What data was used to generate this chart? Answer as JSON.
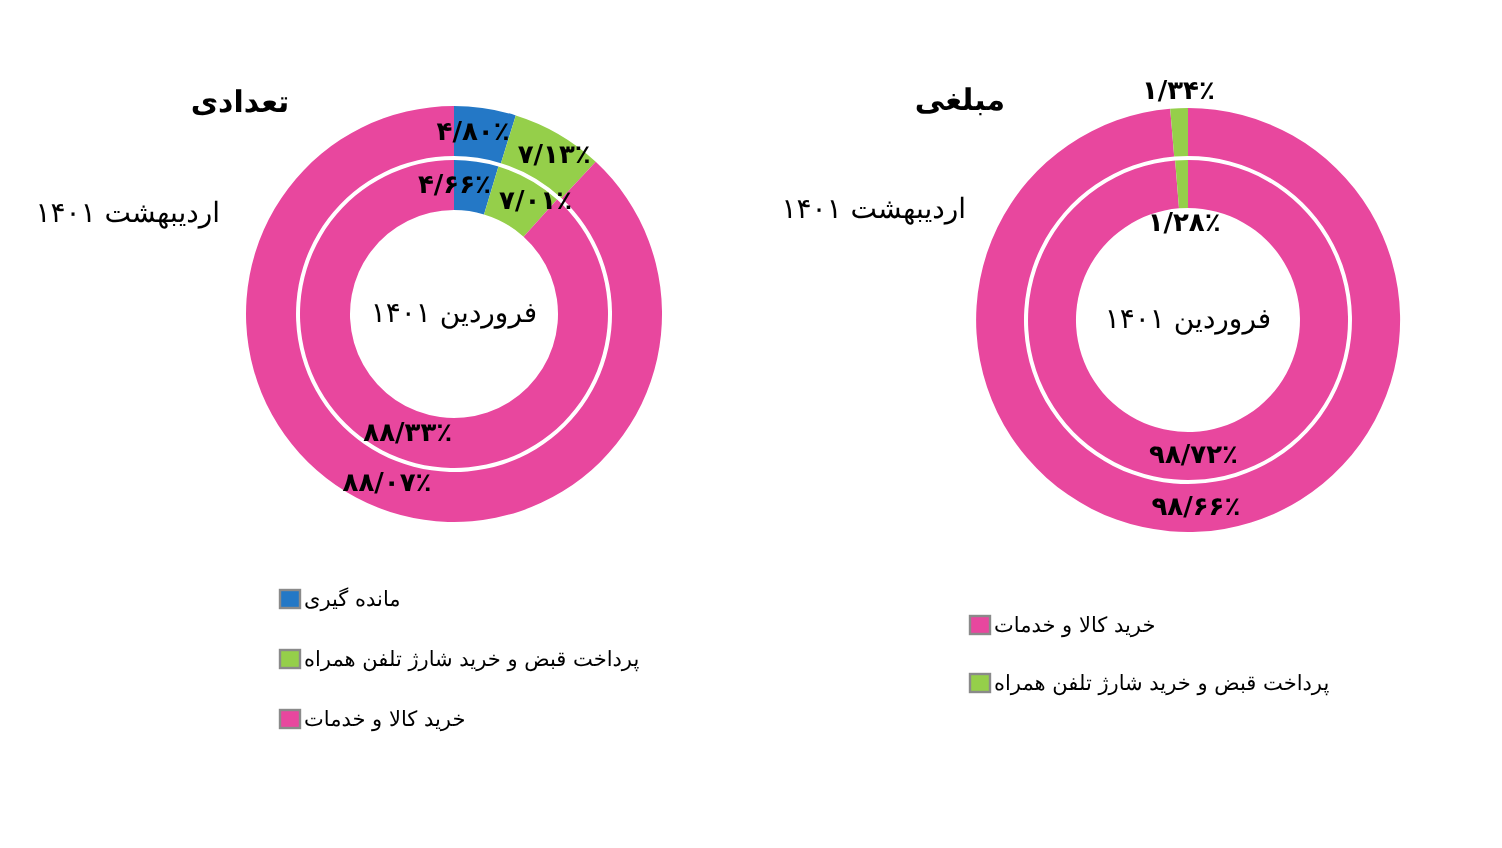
{
  "chart_data": [
    {
      "type": "donut",
      "title": "تعدادی",
      "categories": [
        "مانده گیری",
        "پرداخت قبض و خرید شارژ تلفن همراه",
        "خرید کالا و خدمات"
      ],
      "colors": [
        "#2478c6",
        "#95cf4a",
        "#e8479e"
      ],
      "legend": "bottom",
      "series": [
        {
          "name": "فروردین ۱۴۰۱",
          "values": [
            4.66,
            7.01,
            88.33
          ],
          "value_labels": [
            "۴/۶۶٪",
            "۷/۰۱٪",
            "۸۸/۳۳٪"
          ]
        },
        {
          "name": "اردیبهشت ۱۴۰۱",
          "values": [
            4.8,
            7.13,
            88.07
          ],
          "value_labels": [
            "۴/۸۰٪",
            "۷/۱۳٪",
            "۸۸/۰۷٪"
          ]
        }
      ]
    },
    {
      "type": "donut",
      "title": "مبلغی",
      "categories": [
        "خرید کالا و خدمات",
        "پرداخت قبض و خرید شارژ تلفن همراه"
      ],
      "colors": [
        "#e8479e",
        "#95cf4a"
      ],
      "legend": "bottom",
      "series": [
        {
          "name": "فروردین ۱۴۰۱",
          "values": [
            98.72,
            1.28
          ],
          "value_labels": [
            "۹۸/۷۲٪",
            "۱/۲۸٪"
          ]
        },
        {
          "name": "اردیبهشت ۱۴۰۱",
          "values": [
            98.66,
            1.34
          ],
          "value_labels": [
            "۹۸/۶۶٪",
            "۱/۳۴٪"
          ]
        }
      ]
    }
  ]
}
